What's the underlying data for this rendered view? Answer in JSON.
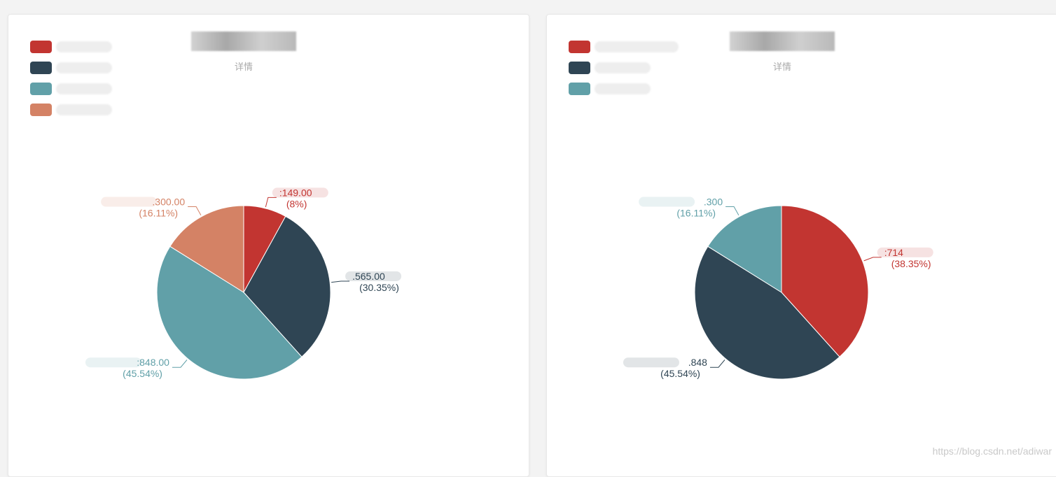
{
  "cards": [
    {
      "chart_title": "",
      "subtext": "详情",
      "legend": [
        {
          "name": "",
          "color": "#c23531"
        },
        {
          "name": "",
          "color": "#2f4554"
        },
        {
          "name": "",
          "color": "#61a0a8"
        },
        {
          "name": "",
          "color": "#d48265"
        }
      ]
    },
    {
      "chart_title": "",
      "subtext": "详情",
      "legend": [
        {
          "name": "",
          "color": "#c23531"
        },
        {
          "name": "",
          "color": "#2f4554"
        },
        {
          "name": "",
          "color": "#61a0a8"
        }
      ]
    }
  ],
  "chart_data": [
    {
      "type": "pie",
      "title": "",
      "subtitle": "详情",
      "legend_position": "top-left",
      "slices": [
        {
          "name": "",
          "value": 149.0,
          "value_label": ":149.00",
          "percent_label": "(8%)",
          "color": "#c23531"
        },
        {
          "name": "",
          "value": 565.0,
          "value_label": ".565.00",
          "percent_label": "(30.35%)",
          "color": "#2f4554"
        },
        {
          "name": "",
          "value": 848.0,
          "value_label": ":848.00",
          "percent_label": "(45.54%)",
          "color": "#61a0a8"
        },
        {
          "name": "",
          "value": 300.0,
          "value_label": ".300.00",
          "percent_label": "(16.11%)",
          "color": "#d48265"
        }
      ]
    },
    {
      "type": "pie",
      "title": "",
      "subtitle": "详情",
      "legend_position": "top-left",
      "slices": [
        {
          "name": "",
          "value": 714,
          "value_label": ":714",
          "percent_label": "(38.35%)",
          "color": "#c23531"
        },
        {
          "name": "",
          "value": 848,
          "value_label": ".848",
          "percent_label": "(45.54%)",
          "color": "#2f4554"
        },
        {
          "name": "",
          "value": 300,
          "value_label": ".300",
          "percent_label": "(16.11%)",
          "color": "#61a0a8"
        }
      ]
    }
  ],
  "watermark": "https://blog.csdn.net/adiwar"
}
